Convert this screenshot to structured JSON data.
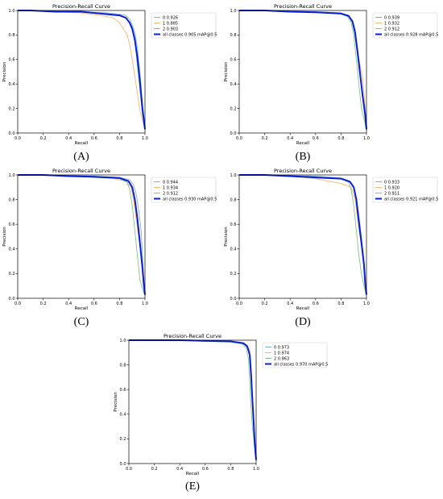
{
  "colors": {
    "class0": "#7fb3d5",
    "class1": "#f5b574",
    "class2": "#82c882",
    "all": "#0a1fd6",
    "axis": "#000000"
  },
  "chart_data": [
    {
      "type": "line",
      "panel": "(A)",
      "panel_letter": "A",
      "title": "Precision-Recall Curve",
      "xlabel": "Recall",
      "ylabel": "Precision",
      "xlim": [
        0,
        1
      ],
      "ylim": [
        0,
        1
      ],
      "xticks": [
        "0.0",
        "0.2",
        "0.4",
        "0.6",
        "0.8",
        "1.0"
      ],
      "yticks": [
        "0.0",
        "0.2",
        "0.4",
        "0.6",
        "0.8",
        "1.0"
      ],
      "legend_position": "outside-right",
      "series": [
        {
          "name": "0 0.926",
          "color_key": "class0",
          "x": [
            0,
            0.1,
            0.3,
            0.5,
            0.7,
            0.8,
            0.85,
            0.88,
            0.9,
            0.92,
            0.94,
            0.96,
            0.98,
            1.0
          ],
          "y": [
            1,
            1,
            0.995,
            0.99,
            0.98,
            0.97,
            0.96,
            0.93,
            0.88,
            0.82,
            0.7,
            0.5,
            0.25,
            0.05
          ]
        },
        {
          "name": "1 0.885",
          "color_key": "class1",
          "x": [
            0,
            0.1,
            0.3,
            0.5,
            0.65,
            0.75,
            0.8,
            0.83,
            0.86,
            0.88,
            0.9,
            0.93,
            0.96,
            1.0
          ],
          "y": [
            1,
            1,
            0.99,
            0.98,
            0.96,
            0.94,
            0.9,
            0.85,
            0.8,
            0.72,
            0.6,
            0.4,
            0.18,
            0.03
          ]
        },
        {
          "name": "2 0.903",
          "color_key": "class2",
          "x": [
            0,
            0.1,
            0.3,
            0.5,
            0.7,
            0.8,
            0.85,
            0.88,
            0.9,
            0.92,
            0.94,
            0.96,
            0.98,
            1.0
          ],
          "y": [
            1,
            1,
            0.99,
            0.99,
            0.97,
            0.96,
            0.94,
            0.9,
            0.85,
            0.75,
            0.55,
            0.35,
            0.15,
            0.03
          ]
        },
        {
          "name": "all classes 0.905 mAP@0.5",
          "color_key": "all",
          "thick": true,
          "x": [
            0,
            0.1,
            0.3,
            0.5,
            0.7,
            0.8,
            0.85,
            0.88,
            0.9,
            0.92,
            0.94,
            0.96,
            0.98,
            1.0
          ],
          "y": [
            1,
            1,
            0.99,
            0.99,
            0.97,
            0.96,
            0.94,
            0.9,
            0.85,
            0.76,
            0.62,
            0.42,
            0.2,
            0.03
          ]
        }
      ]
    },
    {
      "type": "line",
      "panel": "(B)",
      "panel_letter": "B",
      "title": "Precision-Recall Curve",
      "xlabel": "Recall",
      "ylabel": "Precision",
      "xlim": [
        0,
        1
      ],
      "ylim": [
        0,
        1
      ],
      "xticks": [
        "0.0",
        "0.2",
        "0.4",
        "0.6",
        "0.8",
        "1.0"
      ],
      "yticks": [
        "0.0",
        "0.2",
        "0.4",
        "0.6",
        "0.8",
        "1.0"
      ],
      "legend_position": "outside-right",
      "series": [
        {
          "name": "0 0.939",
          "color_key": "class0",
          "x": [
            0,
            0.2,
            0.4,
            0.6,
            0.8,
            0.86,
            0.89,
            0.91,
            0.93,
            0.95,
            0.97,
            0.99,
            1.0
          ],
          "y": [
            1,
            1,
            0.995,
            0.99,
            0.98,
            0.96,
            0.92,
            0.85,
            0.7,
            0.5,
            0.3,
            0.1,
            0.03
          ]
        },
        {
          "name": "1 0.932",
          "color_key": "class1",
          "x": [
            0,
            0.2,
            0.4,
            0.6,
            0.8,
            0.86,
            0.89,
            0.91,
            0.93,
            0.95,
            0.97,
            0.99,
            1.0
          ],
          "y": [
            1,
            1,
            0.99,
            0.985,
            0.97,
            0.95,
            0.9,
            0.82,
            0.68,
            0.55,
            0.45,
            0.2,
            0.04
          ]
        },
        {
          "name": "2 0.912",
          "color_key": "class2",
          "x": [
            0,
            0.2,
            0.4,
            0.6,
            0.8,
            0.85,
            0.88,
            0.9,
            0.92,
            0.94,
            0.96,
            0.98,
            1.0
          ],
          "y": [
            1,
            1,
            0.99,
            0.985,
            0.97,
            0.95,
            0.9,
            0.8,
            0.6,
            0.4,
            0.2,
            0.12,
            0.02
          ]
        },
        {
          "name": "all classes 0.928 mAP@0.5",
          "color_key": "all",
          "thick": true,
          "x": [
            0,
            0.2,
            0.4,
            0.6,
            0.8,
            0.86,
            0.89,
            0.91,
            0.93,
            0.95,
            0.97,
            0.99,
            1.0
          ],
          "y": [
            1,
            1,
            0.99,
            0.985,
            0.975,
            0.955,
            0.91,
            0.82,
            0.66,
            0.48,
            0.3,
            0.15,
            0.03
          ]
        }
      ]
    },
    {
      "type": "line",
      "panel": "(C)",
      "panel_letter": "C",
      "title": "Precision-Recall Curve",
      "xlabel": "Recall",
      "ylabel": "Precision",
      "xlim": [
        0,
        1
      ],
      "ylim": [
        0,
        1
      ],
      "xticks": [
        "0.0",
        "0.2",
        "0.4",
        "0.6",
        "0.8",
        "1.0"
      ],
      "yticks": [
        "0.0",
        "0.2",
        "0.4",
        "0.6",
        "0.8",
        "1.0"
      ],
      "legend_position": "outside-right",
      "series": [
        {
          "name": "0 0.944",
          "color_key": "class0",
          "x": [
            0,
            0.2,
            0.4,
            0.6,
            0.8,
            0.88,
            0.91,
            0.93,
            0.95,
            0.97,
            0.98,
            0.99,
            1.0
          ],
          "y": [
            1,
            1,
            0.995,
            0.99,
            0.98,
            0.96,
            0.92,
            0.85,
            0.72,
            0.55,
            0.35,
            0.15,
            0.03
          ]
        },
        {
          "name": "1 0.934",
          "color_key": "class1",
          "x": [
            0,
            0.2,
            0.4,
            0.6,
            0.75,
            0.85,
            0.89,
            0.91,
            0.93,
            0.95,
            0.97,
            0.99,
            1.0
          ],
          "y": [
            1,
            1,
            0.99,
            0.985,
            0.97,
            0.95,
            0.9,
            0.8,
            0.65,
            0.5,
            0.35,
            0.2,
            0.04
          ]
        },
        {
          "name": "2 0.912",
          "color_key": "class2",
          "x": [
            0,
            0.2,
            0.4,
            0.6,
            0.8,
            0.86,
            0.88,
            0.9,
            0.92,
            0.94,
            0.96,
            0.98,
            1.0
          ],
          "y": [
            1,
            1,
            0.99,
            0.98,
            0.97,
            0.94,
            0.88,
            0.75,
            0.55,
            0.35,
            0.15,
            0.08,
            0.02
          ]
        },
        {
          "name": "all classes 0.930 mAP@0.5",
          "color_key": "all",
          "thick": true,
          "x": [
            0,
            0.2,
            0.4,
            0.6,
            0.8,
            0.87,
            0.9,
            0.92,
            0.94,
            0.96,
            0.98,
            0.99,
            1.0
          ],
          "y": [
            1,
            1,
            0.99,
            0.985,
            0.975,
            0.95,
            0.9,
            0.8,
            0.65,
            0.45,
            0.25,
            0.12,
            0.03
          ]
        }
      ]
    },
    {
      "type": "line",
      "panel": "(D)",
      "panel_letter": "D",
      "title": "Precision-Recall Curve",
      "xlabel": "Recall",
      "ylabel": "Precision",
      "xlim": [
        0,
        1
      ],
      "ylim": [
        0,
        1
      ],
      "xticks": [
        "0.0",
        "0.2",
        "0.4",
        "0.6",
        "0.8",
        "1.0"
      ],
      "yticks": [
        "0.0",
        "0.2",
        "0.4",
        "0.6",
        "0.8",
        "1.0"
      ],
      "legend_position": "outside-right",
      "series": [
        {
          "name": "0 0.933",
          "color_key": "class0",
          "x": [
            0,
            0.2,
            0.4,
            0.6,
            0.8,
            0.87,
            0.9,
            0.92,
            0.94,
            0.96,
            0.98,
            0.99,
            1.0
          ],
          "y": [
            1,
            1,
            0.995,
            0.99,
            0.975,
            0.95,
            0.9,
            0.82,
            0.68,
            0.5,
            0.3,
            0.12,
            0.03
          ]
        },
        {
          "name": "1 0.920",
          "color_key": "class1",
          "x": [
            0,
            0.2,
            0.4,
            0.6,
            0.7,
            0.8,
            0.88,
            0.91,
            0.93,
            0.95,
            0.97,
            0.99,
            1.0
          ],
          "y": [
            1,
            1,
            0.99,
            0.97,
            0.95,
            0.93,
            0.9,
            0.8,
            0.65,
            0.5,
            0.4,
            0.2,
            0.04
          ]
        },
        {
          "name": "2 0.911",
          "color_key": "class2",
          "x": [
            0,
            0.2,
            0.4,
            0.6,
            0.8,
            0.86,
            0.88,
            0.9,
            0.92,
            0.94,
            0.96,
            0.98,
            1.0
          ],
          "y": [
            1,
            1,
            0.99,
            0.98,
            0.97,
            0.94,
            0.88,
            0.75,
            0.55,
            0.35,
            0.2,
            0.1,
            0.02
          ]
        },
        {
          "name": "all classes 0.921 mAP@0.5",
          "color_key": "all",
          "thick": true,
          "x": [
            0,
            0.2,
            0.4,
            0.6,
            0.8,
            0.87,
            0.9,
            0.92,
            0.94,
            0.96,
            0.98,
            0.99,
            1.0
          ],
          "y": [
            1,
            1,
            0.99,
            0.98,
            0.97,
            0.945,
            0.9,
            0.8,
            0.62,
            0.45,
            0.28,
            0.12,
            0.03
          ]
        }
      ]
    },
    {
      "type": "line",
      "panel": "(E)",
      "panel_letter": "E",
      "title": "Precision-Recall Curve",
      "xlabel": "Recall",
      "ylabel": "Precision",
      "xlim": [
        0,
        1
      ],
      "ylim": [
        0,
        1
      ],
      "xticks": [
        "0.0",
        "0.2",
        "0.4",
        "0.6",
        "0.8",
        "1.0"
      ],
      "yticks": [
        "0.0",
        "0.2",
        "0.4",
        "0.6",
        "0.8",
        "1.0"
      ],
      "legend_position": "outside-right",
      "series": [
        {
          "name": "0 0.973",
          "color_key": "class0",
          "x": [
            0,
            0.2,
            0.4,
            0.6,
            0.8,
            0.9,
            0.93,
            0.95,
            0.96,
            0.97,
            0.98,
            0.99,
            1.0
          ],
          "y": [
            1,
            1,
            1,
            0.995,
            0.99,
            0.98,
            0.96,
            0.9,
            0.75,
            0.55,
            0.35,
            0.15,
            0.03
          ]
        },
        {
          "name": "1 0.974",
          "color_key": "class1",
          "x": [
            0,
            0.2,
            0.4,
            0.6,
            0.8,
            0.9,
            0.93,
            0.95,
            0.96,
            0.97,
            0.98,
            0.99,
            1.0
          ],
          "y": [
            1,
            1,
            1,
            0.995,
            0.99,
            0.98,
            0.96,
            0.92,
            0.8,
            0.6,
            0.4,
            0.2,
            0.04
          ]
        },
        {
          "name": "2 0.963",
          "color_key": "class2",
          "x": [
            0,
            0.2,
            0.4,
            0.6,
            0.8,
            0.89,
            0.92,
            0.94,
            0.95,
            0.96,
            0.97,
            0.99,
            1.0
          ],
          "y": [
            1,
            1,
            1,
            0.99,
            0.985,
            0.97,
            0.94,
            0.85,
            0.65,
            0.45,
            0.3,
            0.12,
            0.02
          ]
        },
        {
          "name": "all classes 0.970 mAP@0.5",
          "color_key": "all",
          "thick": true,
          "x": [
            0,
            0.2,
            0.4,
            0.6,
            0.8,
            0.9,
            0.93,
            0.95,
            0.96,
            0.97,
            0.98,
            0.99,
            1.0
          ],
          "y": [
            1,
            1,
            1,
            0.995,
            0.99,
            0.975,
            0.95,
            0.88,
            0.72,
            0.52,
            0.35,
            0.15,
            0.03
          ]
        }
      ]
    }
  ]
}
